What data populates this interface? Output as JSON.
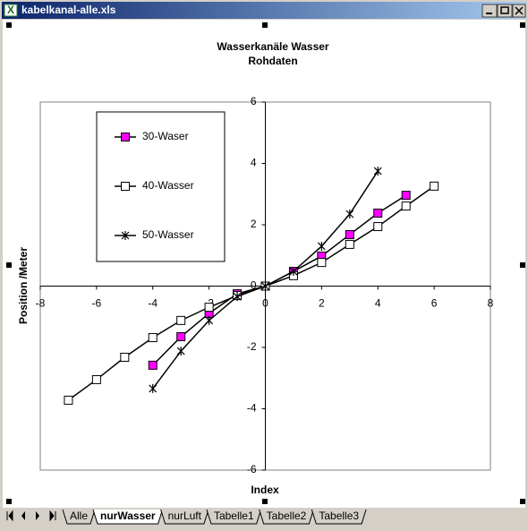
{
  "window": {
    "title": "kabelkanal-alle.xls"
  },
  "tabs": [
    "Alle",
    "nurWasser",
    "nurLuft",
    "Tabelle1",
    "Tabelle2",
    "Tabelle3"
  ],
  "active_tab": 1,
  "chart_data": {
    "type": "line",
    "title": "Wasserkanäle  Wasser",
    "subtitle": "Rohdaten",
    "x_label": "Index",
    "y_label": "Position /Meter",
    "x": [
      -7,
      -6,
      -5,
      -4,
      -3,
      -2,
      -1,
      0,
      1,
      2,
      3,
      4,
      5,
      6
    ],
    "series": [
      {
        "name": "30-Waser",
        "color": "#000000",
        "marker": "square",
        "marker_fill": "#ff00ff",
        "values": [
          null,
          null,
          null,
          -2.58,
          -1.65,
          -0.89,
          -0.25,
          0,
          0.48,
          0.98,
          1.68,
          2.38,
          2.96,
          null
        ]
      },
      {
        "name": "40-Wasser",
        "color": "#000000",
        "marker": "square",
        "marker_fill": "#ffffff",
        "values": [
          -3.72,
          -3.05,
          -2.32,
          -1.68,
          -1.12,
          -0.69,
          -0.31,
          0,
          0.34,
          0.77,
          1.36,
          1.94,
          2.61,
          3.26
        ]
      },
      {
        "name": "50-Wasser",
        "color": "#000000",
        "marker": "star",
        "marker_fill": "none",
        "values": [
          null,
          null,
          null,
          -3.34,
          -2.12,
          -1.12,
          -0.34,
          0,
          0.48,
          1.3,
          2.35,
          3.75,
          null,
          null
        ]
      }
    ],
    "xlim": [
      -8,
      8
    ],
    "xticks": [
      -8,
      -6,
      -4,
      -2,
      0,
      2,
      4,
      6,
      8
    ],
    "ylim": [
      -6,
      6
    ],
    "yticks": [
      -6,
      -4,
      -2,
      0,
      2,
      4,
      6
    ],
    "grid": false,
    "legend": "upper-left"
  }
}
